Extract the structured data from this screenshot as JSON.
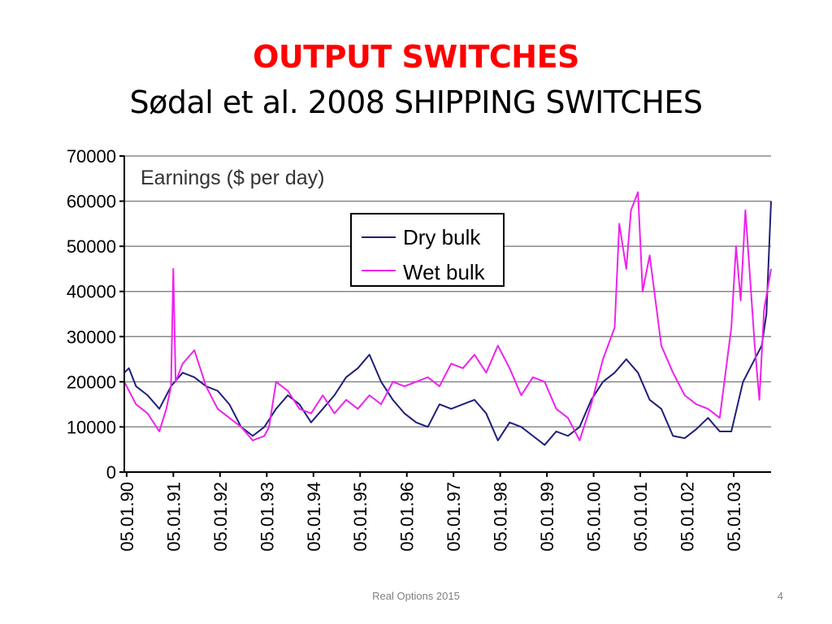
{
  "slide": {
    "title": "OUTPUT SWITCHES",
    "subtitle": "Sødal et al. 2008 SHIPPING SWITCHES",
    "footer": "Real Options 2015",
    "page_number": "4"
  },
  "chart_data": {
    "type": "line",
    "title": "Earnings ($ per day)",
    "xlabel": "",
    "ylabel": "",
    "ylim": [
      0,
      70000
    ],
    "yticks": [
      0,
      10000,
      20000,
      30000,
      40000,
      50000,
      60000,
      70000
    ],
    "xlim": [
      0,
      13.85
    ],
    "xticks": [
      "05.01.90",
      "05.01.91",
      "05.01.92",
      "05.01.93",
      "05.01.94",
      "05.01.95",
      "05.01.96",
      "05.01.97",
      "05.01.98",
      "05.01.99",
      "05.01.00",
      "05.01.01",
      "05.01.02",
      "05.01.03"
    ],
    "grid": "horizontal",
    "legend_position": "top-center",
    "series": [
      {
        "name": "Dry bulk",
        "color": "#1f1f7a",
        "x": [
          0,
          0.1,
          0.25,
          0.5,
          0.75,
          1.0,
          1.25,
          1.5,
          1.75,
          2.0,
          2.25,
          2.5,
          2.75,
          3.0,
          3.25,
          3.5,
          3.75,
          4.0,
          4.25,
          4.5,
          4.75,
          5.0,
          5.25,
          5.5,
          5.75,
          6.0,
          6.25,
          6.5,
          6.75,
          7.0,
          7.25,
          7.5,
          7.75,
          8.0,
          8.25,
          8.5,
          8.75,
          9.0,
          9.25,
          9.5,
          9.75,
          10.0,
          10.25,
          10.5,
          10.75,
          11.0,
          11.25,
          11.5,
          11.75,
          12.0,
          12.25,
          12.5,
          12.75,
          13.0,
          13.25,
          13.5,
          13.65,
          13.75,
          13.85
        ],
        "y": [
          22000,
          23000,
          19000,
          17000,
          14000,
          19000,
          22000,
          21000,
          19000,
          18000,
          15000,
          10000,
          8000,
          10000,
          14000,
          17000,
          15000,
          11000,
          14000,
          17000,
          21000,
          23000,
          26000,
          20000,
          16000,
          13000,
          11000,
          10000,
          15000,
          14000,
          15000,
          16000,
          13000,
          7000,
          11000,
          10000,
          8000,
          6000,
          9000,
          8000,
          10000,
          16000,
          20000,
          22000,
          25000,
          22000,
          16000,
          14000,
          8000,
          7500,
          9500,
          12000,
          9000,
          9000,
          20000,
          25000,
          28000,
          35000,
          60000
        ]
      },
      {
        "name": "Wet bulk",
        "color": "#ee22ee",
        "x": [
          0,
          0.25,
          0.5,
          0.75,
          0.9,
          1.0,
          1.05,
          1.1,
          1.25,
          1.5,
          1.75,
          2.0,
          2.25,
          2.5,
          2.75,
          3.0,
          3.1,
          3.25,
          3.5,
          3.75,
          4.0,
          4.25,
          4.5,
          4.75,
          5.0,
          5.25,
          5.5,
          5.75,
          6.0,
          6.25,
          6.5,
          6.75,
          7.0,
          7.25,
          7.5,
          7.75,
          8.0,
          8.25,
          8.5,
          8.75,
          9.0,
          9.25,
          9.5,
          9.75,
          10.0,
          10.25,
          10.5,
          10.6,
          10.75,
          10.85,
          11.0,
          11.1,
          11.25,
          11.5,
          11.75,
          12.0,
          12.25,
          12.5,
          12.75,
          13.0,
          13.1,
          13.2,
          13.3,
          13.5,
          13.6,
          13.7,
          13.85
        ],
        "y": [
          20000,
          15000,
          13000,
          9000,
          14000,
          19000,
          45000,
          20000,
          24000,
          27000,
          19000,
          14000,
          12000,
          10000,
          7000,
          8000,
          10000,
          20000,
          18000,
          14000,
          13000,
          17000,
          13000,
          16000,
          14000,
          17000,
          15000,
          20000,
          19000,
          20000,
          21000,
          19000,
          24000,
          23000,
          26000,
          22000,
          28000,
          23000,
          17000,
          21000,
          20000,
          14000,
          12000,
          7000,
          15000,
          25000,
          32000,
          55000,
          45000,
          58000,
          62000,
          40000,
          48000,
          28000,
          22000,
          17000,
          15000,
          14000,
          12000,
          32000,
          50000,
          38000,
          58000,
          28000,
          16000,
          36000,
          45000
        ]
      }
    ]
  }
}
